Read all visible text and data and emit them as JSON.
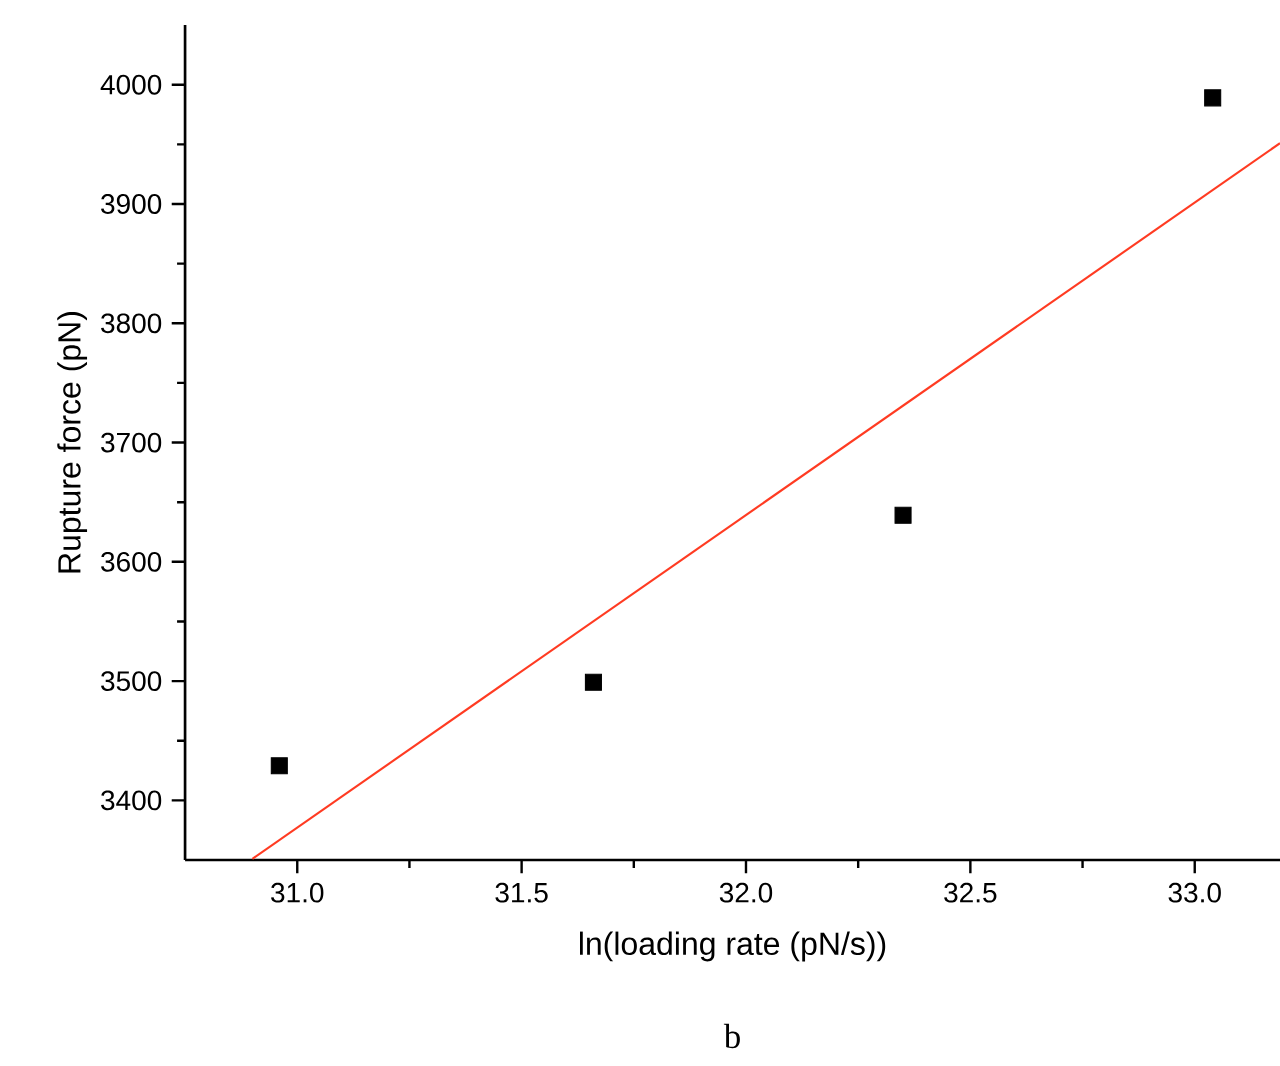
{
  "chart_data": {
    "type": "scatter",
    "xlabel": "ln(loading rate (pN/s))",
    "ylabel": "Rupture force (pN)",
    "annotations": [
      "b"
    ],
    "xlim": [
      30.75,
      33.19
    ],
    "ylim": [
      3350,
      4050
    ],
    "xticks": [
      {
        "value": 31.0,
        "label": "31.0"
      },
      {
        "value": 31.5,
        "label": "31.5"
      },
      {
        "value": 32.0,
        "label": "32.0"
      },
      {
        "value": 32.5,
        "label": "32.5"
      },
      {
        "value": 33.0,
        "label": "33.0"
      }
    ],
    "yticks": [
      3400,
      3500,
      3600,
      3700,
      3800,
      3900,
      4000
    ],
    "marker": "square",
    "series": [
      {
        "color": "#000000",
        "x": [
          30.96,
          31.66,
          32.35,
          33.04
        ],
        "values": [
          3429,
          3499,
          3639,
          3989
        ]
      },
      {
        "type": "line",
        "color": "#ff3b22",
        "marker": "none",
        "x": [
          30.9,
          33.19
        ],
        "values": [
          3351,
          3951
        ]
      }
    ]
  }
}
